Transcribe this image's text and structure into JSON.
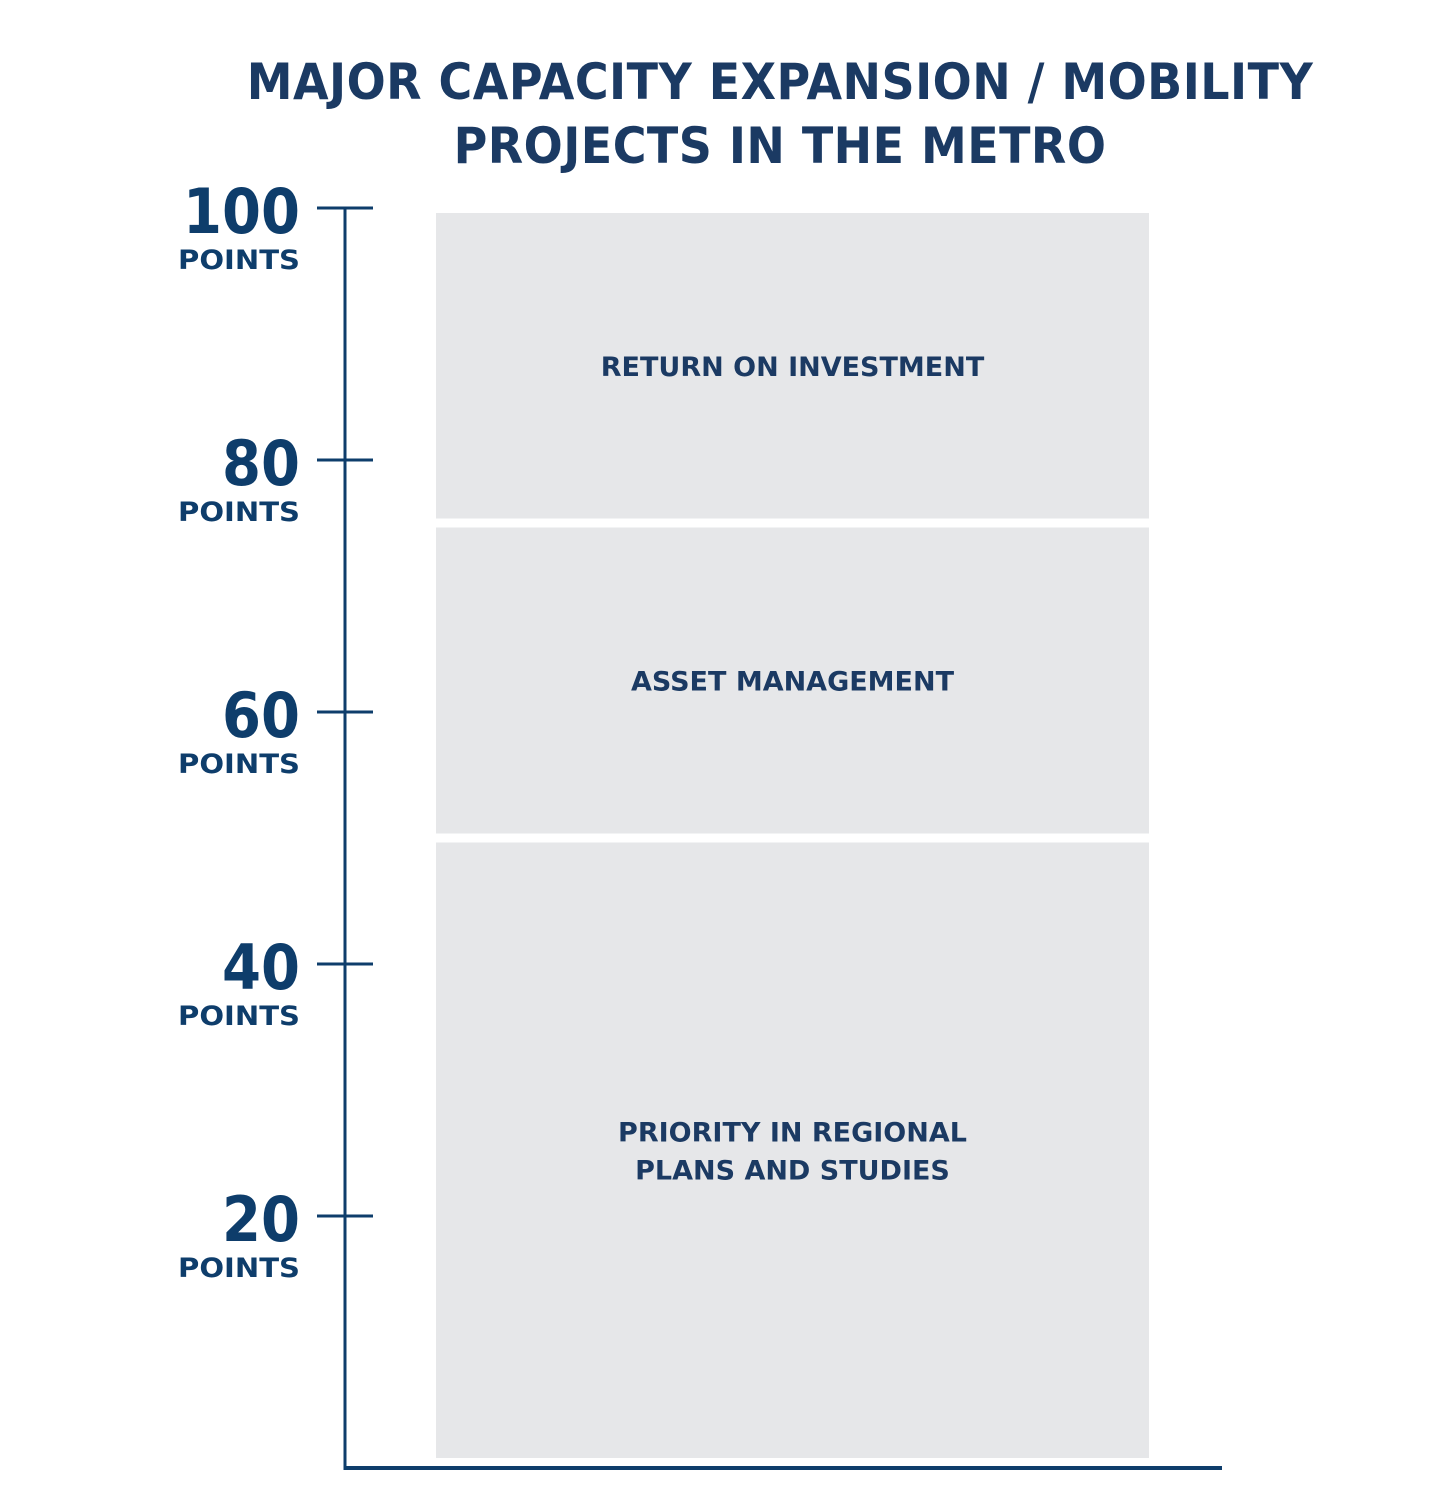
{
  "chart_data": {
    "type": "bar",
    "subtype": "stacked",
    "title": "MAJOR CAPACITY EXPANSION / MOBILITY PROJECTS IN THE METRO",
    "title_lines": [
      "MAJOR CAPACITY EXPANSION / MOBILITY",
      "PROJECTS IN THE METRO"
    ],
    "xlabel": "",
    "ylabel": "",
    "ylim": [
      0,
      100
    ],
    "ticks": [
      {
        "value": 100,
        "label": "100",
        "unit": "POINTS"
      },
      {
        "value": 80,
        "label": "80",
        "unit": "POINTS"
      },
      {
        "value": 60,
        "label": "60",
        "unit": "POINTS"
      },
      {
        "value": 40,
        "label": "40",
        "unit": "POINTS"
      },
      {
        "value": 20,
        "label": "20",
        "unit": "POINTS"
      }
    ],
    "grid": false,
    "legend": "none",
    "series": [
      {
        "name": "PRIORITY IN REGIONAL PLANS AND STUDIES",
        "label_lines": [
          "PRIORITY IN REGIONAL",
          "PLANS AND STUDIES"
        ],
        "value": 50
      },
      {
        "name": "ASSET MANAGEMENT",
        "label_lines": [
          "ASSET MANAGEMENT"
        ],
        "value": 25
      },
      {
        "name": "RETURN ON INVESTMENT",
        "label_lines": [
          "RETURN ON INVESTMENT"
        ],
        "value": 25
      }
    ],
    "colors": {
      "segment_fill": "#e6e7e9",
      "axis": "#0e3d6b",
      "text": "#1b3a63"
    }
  }
}
